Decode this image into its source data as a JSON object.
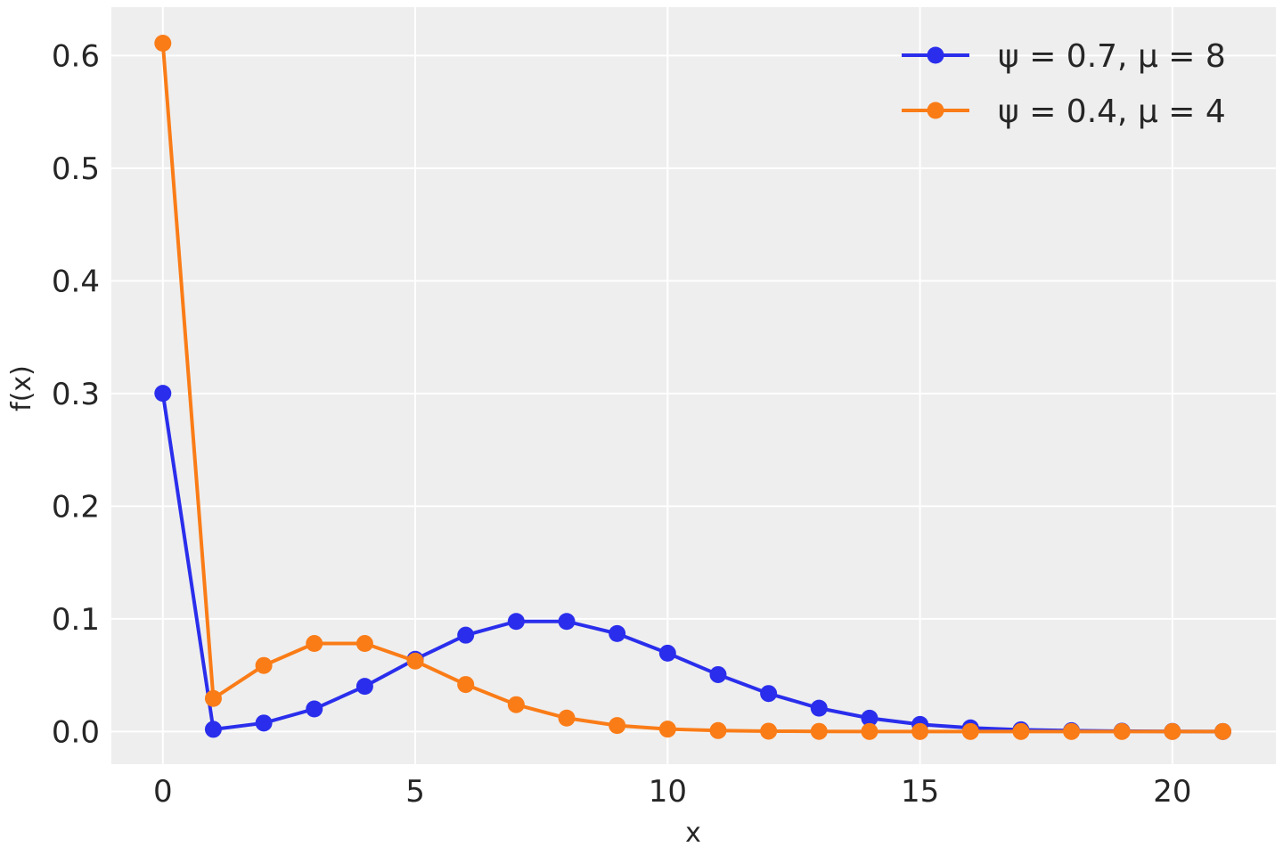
{
  "chart_data": {
    "type": "line",
    "title": "",
    "xlabel": "x",
    "ylabel": "f(x)",
    "xlim": [
      -1.02,
      22.05
    ],
    "ylim": [
      -0.029,
      0.643
    ],
    "xticks": [
      0,
      5,
      10,
      15,
      20
    ],
    "xtick_labels": [
      "0",
      "5",
      "10",
      "15",
      "20"
    ],
    "yticks": [
      0.0,
      0.1,
      0.2,
      0.3,
      0.4,
      0.5,
      0.6
    ],
    "ytick_labels": [
      "0.0",
      "0.1",
      "0.2",
      "0.3",
      "0.4",
      "0.5",
      "0.6"
    ],
    "grid": true,
    "legend_position": "top-right",
    "background": "#eeeeee",
    "x": [
      0,
      1,
      2,
      3,
      4,
      5,
      6,
      7,
      8,
      9,
      10,
      11,
      12,
      13,
      14,
      15,
      16,
      17,
      18,
      19,
      20,
      21
    ],
    "series": [
      {
        "name": "ψ = 0.7, μ = 8",
        "color": "#2a2eec",
        "values": [
          0.3002,
          0.0019,
          0.0075,
          0.02,
          0.0401,
          0.0641,
          0.0855,
          0.0977,
          0.0977,
          0.0869,
          0.0695,
          0.0505,
          0.0337,
          0.0207,
          0.0118,
          0.0063,
          0.0032,
          0.0015,
          0.0007,
          0.0003,
          0.0001,
          0.0
        ]
      },
      {
        "name": "ψ = 0.4, μ = 4",
        "color": "#fa7c17",
        "values": [
          0.611,
          0.0293,
          0.0586,
          0.0781,
          0.0781,
          0.0625,
          0.0417,
          0.0238,
          0.0119,
          0.0053,
          0.0021,
          0.0008,
          0.0003,
          0.0001,
          0.0,
          0.0,
          0.0,
          0.0,
          0.0,
          0.0,
          0.0,
          0.0
        ]
      }
    ]
  }
}
